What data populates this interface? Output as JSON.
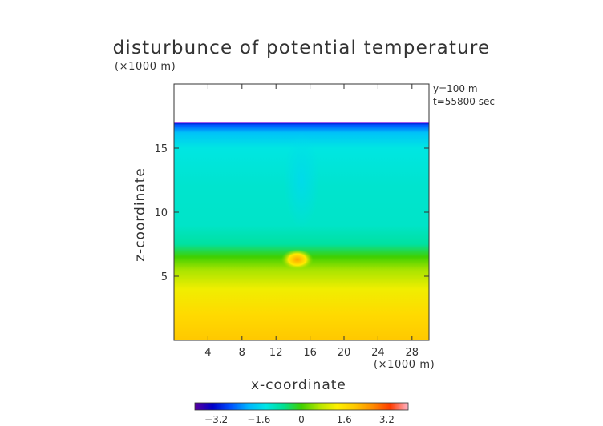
{
  "chart_data": {
    "type": "heatmap",
    "title": "disturbunce of potential temperature",
    "xlabel": "x-coordinate",
    "ylabel": "z-coordinate",
    "x_unit": "(×1000 m)",
    "y_unit": "(×1000 m)",
    "annotations": [
      "y=100 m",
      "t=55800 sec"
    ],
    "xlim": [
      0,
      30
    ],
    "ylim": [
      0,
      20
    ],
    "xticks": [
      4,
      8,
      12,
      16,
      20,
      24,
      28
    ],
    "yticks": [
      5,
      10,
      15
    ],
    "field_top_z": 17,
    "colorbar": {
      "range": [
        -4,
        4
      ],
      "ticks": [
        "−3.2",
        "−1.6",
        "0",
        "1.6",
        "3.2"
      ],
      "tick_values": [
        -3.2,
        -1.6,
        0,
        1.6,
        3.2
      ],
      "colors": [
        "#5a00a0",
        "#0000c8",
        "#0050ff",
        "#00b4ff",
        "#00e6e6",
        "#00e090",
        "#40d000",
        "#b4e600",
        "#fff000",
        "#ffc800",
        "#ff8c00",
        "#ff3c00",
        "#ffb4c8"
      ]
    },
    "z_profile": [
      {
        "z": 0,
        "value": 2.0
      },
      {
        "z": 2,
        "value": 1.7
      },
      {
        "z": 4,
        "value": 1.2
      },
      {
        "z": 5.5,
        "value": 0.6
      },
      {
        "z": 6.5,
        "value": 0.0
      },
      {
        "z": 7.5,
        "value": -0.8
      },
      {
        "z": 9,
        "value": -1.1
      },
      {
        "z": 12,
        "value": -1.15
      },
      {
        "z": 15,
        "value": -1.3
      },
      {
        "z": 16.2,
        "value": -1.8
      },
      {
        "z": 16.8,
        "value": -2.6
      },
      {
        "z": 17,
        "value": -3.4
      }
    ],
    "features": [
      {
        "kind": "warm-core",
        "x": 14.5,
        "z": 6.3,
        "value": 2.4
      },
      {
        "kind": "cool-plume",
        "x": 15.0,
        "z": 12.5,
        "value": -1.5
      }
    ]
  }
}
